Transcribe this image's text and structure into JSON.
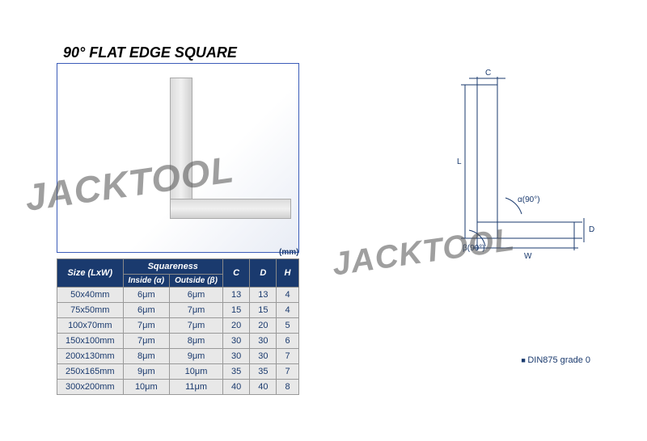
{
  "title": "90° FLAT EDGE SQUARE",
  "watermark": "JACKTOOL",
  "unit_label": "(mm)",
  "note": "DIN875 grade 0",
  "table": {
    "header_size": "Size (LxW)",
    "header_squareness": "Squareness",
    "header_inside": "Inside (α)",
    "header_outside": "Outside (β)",
    "header_c": "C",
    "header_d": "D",
    "header_h": "H",
    "rows": [
      {
        "size": "50x40mm",
        "inside": "6μm",
        "outside": "6μm",
        "c": "13",
        "d": "13",
        "h": "4"
      },
      {
        "size": "75x50mm",
        "inside": "6μm",
        "outside": "7μm",
        "c": "15",
        "d": "15",
        "h": "4"
      },
      {
        "size": "100x70mm",
        "inside": "7μm",
        "outside": "7μm",
        "c": "20",
        "d": "20",
        "h": "5"
      },
      {
        "size": "150x100mm",
        "inside": "7μm",
        "outside": "8μm",
        "c": "30",
        "d": "30",
        "h": "6"
      },
      {
        "size": "200x130mm",
        "inside": "8μm",
        "outside": "9μm",
        "c": "30",
        "d": "30",
        "h": "7"
      },
      {
        "size": "250x165mm",
        "inside": "9μm",
        "outside": "10μm",
        "c": "35",
        "d": "35",
        "h": "7"
      },
      {
        "size": "300x200mm",
        "inside": "10μm",
        "outside": "11μm",
        "c": "40",
        "d": "40",
        "h": "8"
      }
    ]
  },
  "diagram": {
    "label_c": "C",
    "label_l": "L",
    "label_w": "W",
    "label_d": "D",
    "label_alpha": "α(90°)",
    "label_beta": "β(90°)",
    "stroke": "#1a3a6e"
  }
}
